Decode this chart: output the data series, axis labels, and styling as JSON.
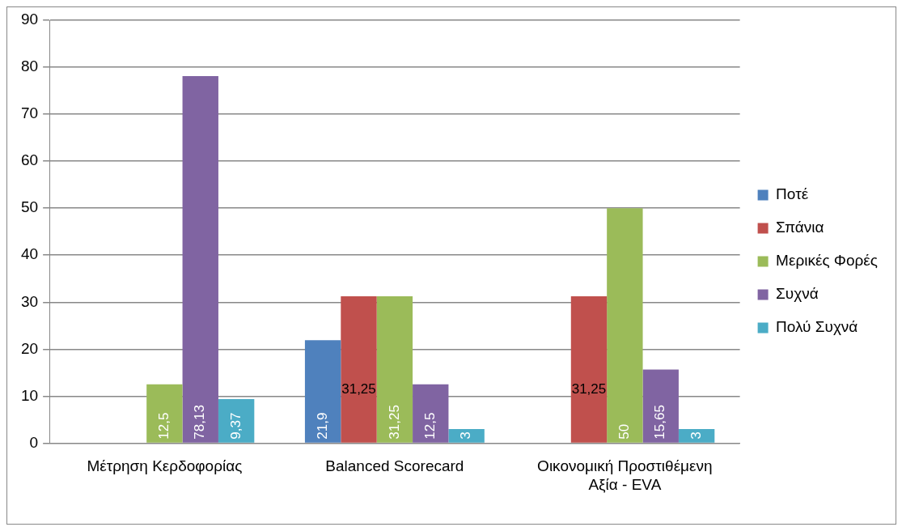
{
  "chart_data": {
    "type": "bar",
    "categories": [
      "Μέτρηση Κερδοφορίας",
      "Balanced Scorecard",
      "Οικονομική Προστιθέμενη Αξία - EVA"
    ],
    "series": [
      {
        "name": "Ποτέ",
        "color": "#4f81bd",
        "values": [
          null,
          21.9,
          null
        ],
        "value_labels": [
          null,
          "21,9",
          null
        ]
      },
      {
        "name": "Σπάνια",
        "color": "#c0504d",
        "values": [
          null,
          31.25,
          31.25
        ],
        "value_labels": [
          null,
          "31,25",
          "31,25"
        ]
      },
      {
        "name": "Μερικές Φορές",
        "color": "#9bbb59",
        "values": [
          12.5,
          31.25,
          50
        ],
        "value_labels": [
          "12,5",
          "31,25",
          "50"
        ]
      },
      {
        "name": "Συχνά",
        "color": "#8064a2",
        "values": [
          78.13,
          12.5,
          15.65
        ],
        "value_labels": [
          "78,13",
          "12,5",
          "15,65"
        ]
      },
      {
        "name": "Πολύ Συχνά",
        "color": "#4bacc6",
        "values": [
          9.37,
          3,
          3
        ],
        "value_labels": [
          "9,37",
          "3",
          "3"
        ]
      }
    ],
    "ylim": [
      0,
      90
    ],
    "yticks": [
      0,
      10,
      20,
      30,
      40,
      50,
      60,
      70,
      80,
      90
    ],
    "grid": "y",
    "legend": "right"
  }
}
